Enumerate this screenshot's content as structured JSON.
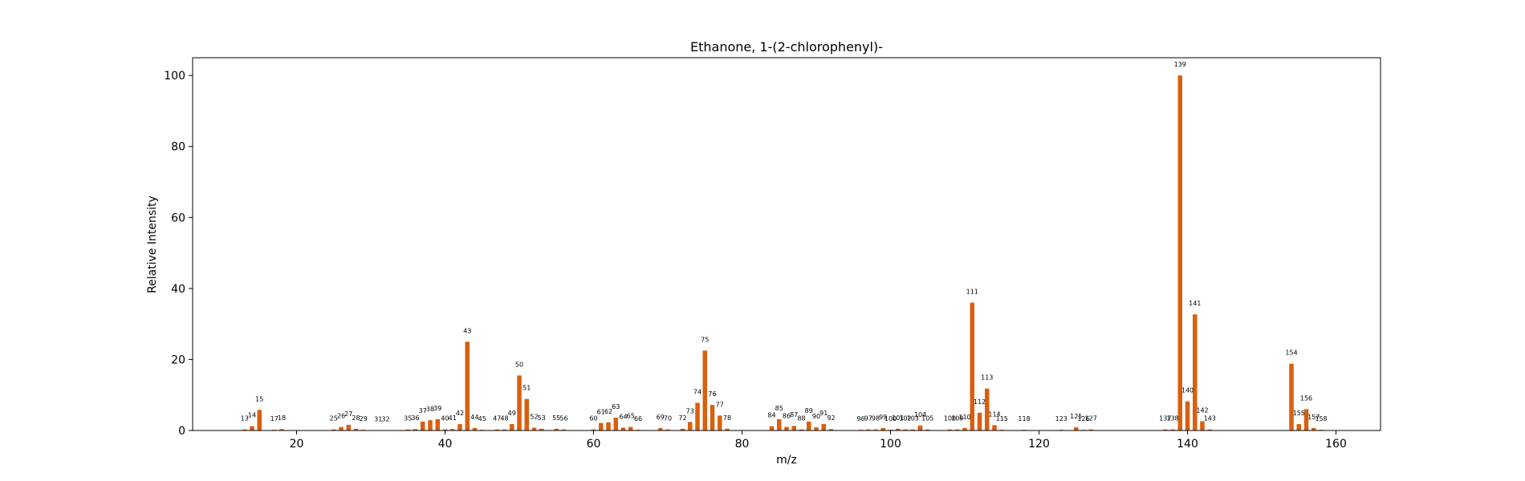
{
  "chart_data": {
    "type": "bar",
    "title": "Ethanone, 1-(2-chlorophenyl)-",
    "xlabel": "m/z",
    "ylabel": "Relative Intensity",
    "xlim": [
      6,
      166
    ],
    "ylim": [
      0,
      105
    ],
    "xticks": [
      20,
      40,
      60,
      80,
      100,
      120,
      140,
      160
    ],
    "yticks": [
      0,
      20,
      40,
      60,
      80,
      100
    ],
    "grid": false,
    "bar_color": "#d95f0e",
    "peaks": [
      {
        "x": 13,
        "y": 0.3
      },
      {
        "x": 14,
        "y": 1.2
      },
      {
        "x": 15,
        "y": 5.8
      },
      {
        "x": 17,
        "y": 0.2
      },
      {
        "x": 18,
        "y": 0.4
      },
      {
        "x": 25,
        "y": 0.3
      },
      {
        "x": 26,
        "y": 1.0
      },
      {
        "x": 27,
        "y": 1.6
      },
      {
        "x": 28,
        "y": 0.5
      },
      {
        "x": 29,
        "y": 0.2
      },
      {
        "x": 31,
        "y": 0.1
      },
      {
        "x": 32,
        "y": 0.1
      },
      {
        "x": 35,
        "y": 0.3
      },
      {
        "x": 36,
        "y": 0.4
      },
      {
        "x": 37,
        "y": 2.5
      },
      {
        "x": 38,
        "y": 2.9
      },
      {
        "x": 39,
        "y": 3.2
      },
      {
        "x": 40,
        "y": 0.3
      },
      {
        "x": 41,
        "y": 0.4
      },
      {
        "x": 42,
        "y": 1.8
      },
      {
        "x": 43,
        "y": 25.0
      },
      {
        "x": 44,
        "y": 0.7
      },
      {
        "x": 45,
        "y": 0.2
      },
      {
        "x": 47,
        "y": 0.3
      },
      {
        "x": 48,
        "y": 0.3
      },
      {
        "x": 49,
        "y": 1.8
      },
      {
        "x": 50,
        "y": 15.5
      },
      {
        "x": 51,
        "y": 8.9
      },
      {
        "x": 52,
        "y": 0.8
      },
      {
        "x": 53,
        "y": 0.5
      },
      {
        "x": 55,
        "y": 0.5
      },
      {
        "x": 56,
        "y": 0.3
      },
      {
        "x": 60,
        "y": 0.3
      },
      {
        "x": 61,
        "y": 2.1
      },
      {
        "x": 62,
        "y": 2.3
      },
      {
        "x": 63,
        "y": 3.6
      },
      {
        "x": 64,
        "y": 0.8
      },
      {
        "x": 65,
        "y": 1.0
      },
      {
        "x": 66,
        "y": 0.2
      },
      {
        "x": 69,
        "y": 0.7
      },
      {
        "x": 70,
        "y": 0.3
      },
      {
        "x": 72,
        "y": 0.5
      },
      {
        "x": 73,
        "y": 2.4
      },
      {
        "x": 74,
        "y": 7.8
      },
      {
        "x": 75,
        "y": 22.5
      },
      {
        "x": 76,
        "y": 7.2
      },
      {
        "x": 77,
        "y": 4.2
      },
      {
        "x": 78,
        "y": 0.5
      },
      {
        "x": 84,
        "y": 1.2
      },
      {
        "x": 85,
        "y": 3.2
      },
      {
        "x": 86,
        "y": 1.0
      },
      {
        "x": 87,
        "y": 1.3
      },
      {
        "x": 88,
        "y": 0.3
      },
      {
        "x": 89,
        "y": 2.5
      },
      {
        "x": 90,
        "y": 0.9
      },
      {
        "x": 91,
        "y": 1.8
      },
      {
        "x": 92,
        "y": 0.4
      },
      {
        "x": 96,
        "y": 0.2
      },
      {
        "x": 97,
        "y": 0.3
      },
      {
        "x": 98,
        "y": 0.3
      },
      {
        "x": 99,
        "y": 0.7
      },
      {
        "x": 100,
        "y": 0.2
      },
      {
        "x": 101,
        "y": 0.5
      },
      {
        "x": 102,
        "y": 0.3
      },
      {
        "x": 103,
        "y": 0.3
      },
      {
        "x": 104,
        "y": 1.4
      },
      {
        "x": 105,
        "y": 0.3
      },
      {
        "x": 108,
        "y": 0.3
      },
      {
        "x": 109,
        "y": 0.3
      },
      {
        "x": 110,
        "y": 0.7
      },
      {
        "x": 111,
        "y": 36.0
      },
      {
        "x": 112,
        "y": 5.0
      },
      {
        "x": 113,
        "y": 11.8
      },
      {
        "x": 114,
        "y": 1.5
      },
      {
        "x": 115,
        "y": 0.2
      },
      {
        "x": 118,
        "y": 0.2
      },
      {
        "x": 123,
        "y": 0.2
      },
      {
        "x": 125,
        "y": 0.9
      },
      {
        "x": 126,
        "y": 0.2
      },
      {
        "x": 127,
        "y": 0.3
      },
      {
        "x": 137,
        "y": 0.3
      },
      {
        "x": 138,
        "y": 0.3
      },
      {
        "x": 139,
        "y": 100.0
      },
      {
        "x": 140,
        "y": 8.2
      },
      {
        "x": 141,
        "y": 32.7
      },
      {
        "x": 142,
        "y": 2.6
      },
      {
        "x": 143,
        "y": 0.3
      },
      {
        "x": 154,
        "y": 18.8
      },
      {
        "x": 155,
        "y": 1.8
      },
      {
        "x": 156,
        "y": 6.0
      },
      {
        "x": 157,
        "y": 0.7
      },
      {
        "x": 158,
        "y": 0.2
      }
    ]
  }
}
